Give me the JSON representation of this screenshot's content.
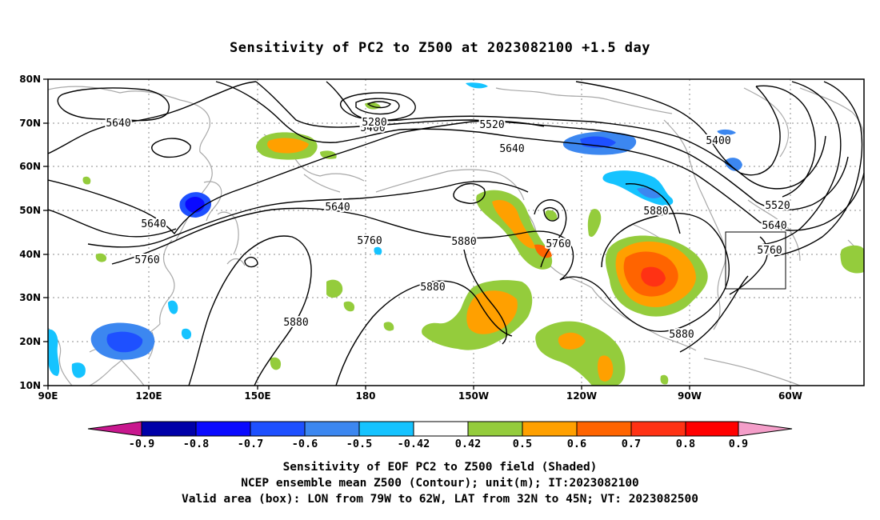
{
  "title": "Sensitivity of PC2 to Z500 at 2023082100 +1.5 day",
  "map": {
    "projection": "equirectangular",
    "lon_range_deg_east": [
      90,
      310
    ],
    "lat_range_deg_north": [
      10,
      80
    ],
    "grid": "dotted",
    "lat_ticks": [
      "10N",
      "20N",
      "30N",
      "40N",
      "50N",
      "60N",
      "70N",
      "80N"
    ],
    "lon_ticks": [
      "90E",
      "120E",
      "150E",
      "180",
      "150W",
      "120W",
      "90W",
      "60W"
    ],
    "contour_variable": "Z500 (m)",
    "contour_labels": [
      "5640",
      "5400",
      "5280",
      "5520",
      "5640",
      "5400",
      "5640",
      "5640",
      "5760",
      "5760",
      "5880",
      "5760",
      "5880",
      "5760",
      "5880",
      "5520",
      "5640",
      "5880",
      "5880"
    ],
    "valid_area_box": {
      "lon_west": "79W",
      "lon_east": "62W",
      "lat_south": "32N",
      "lat_north": "45N"
    }
  },
  "colorbar": {
    "labels": [
      "-0.9",
      "-0.8",
      "-0.7",
      "-0.6",
      "-0.5",
      "-0.42",
      "0.42",
      "0.5",
      "0.6",
      "0.7",
      "0.8",
      "0.9"
    ],
    "colors": [
      "#c8178e",
      "#0000a8",
      "#0a0aff",
      "#1e50ff",
      "#3c87f0",
      "#15c3ff",
      "#ffffff",
      "#94cc3c",
      "#ffa000",
      "#ff6400",
      "#ff3214",
      "#ff0000",
      "#f49ec9"
    ]
  },
  "caption": {
    "line1": "Sensitivity of EOF PC2 to Z500 field (Shaded)",
    "line2": "NCEP ensemble mean Z500 (Contour); unit(m); IT:2023082100",
    "line3": "Valid area (box): LON from 79W to 62W, LAT from 32N to 45N; VT: 2023082500"
  }
}
